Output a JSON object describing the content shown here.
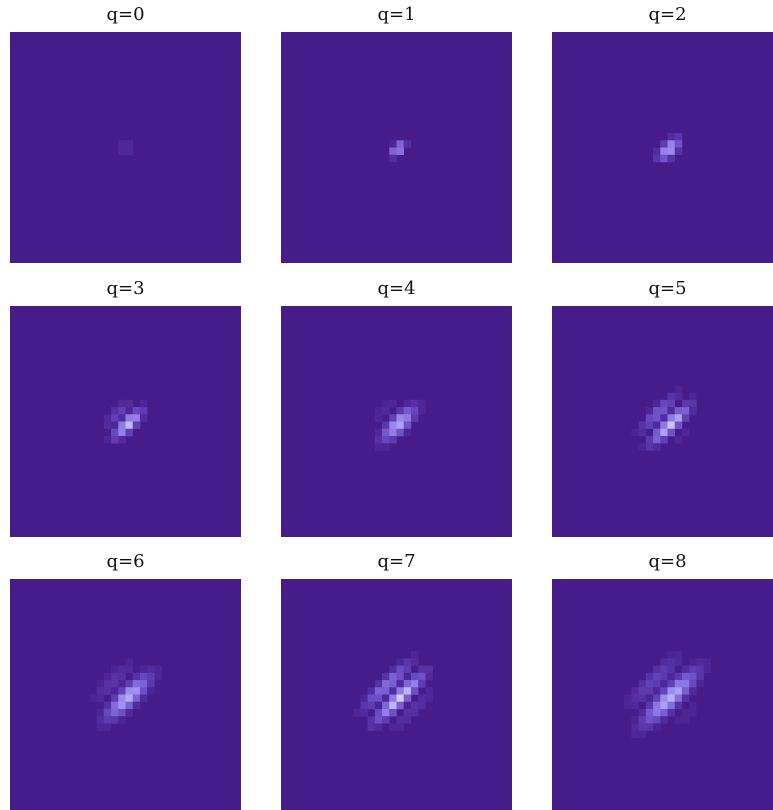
{
  "figure": {
    "panel_titles": [
      "q=0",
      "q=1",
      "q=2",
      "q=3",
      "q=4",
      "q=5",
      "q=6",
      "q=7",
      "q=8"
    ]
  },
  "colors": {
    "background": "#461c8a",
    "dim": "#6a4cc4",
    "mid": "#8f7ae6",
    "light": "#b8b3f4",
    "bright": "#f3eaf2"
  },
  "chart_data": [
    {
      "type": "heatmap",
      "title": "q=0",
      "grid": [
        32,
        32
      ],
      "colormap": "purple-to-cream",
      "value_range": [
        0,
        1
      ],
      "center": [
        16,
        16
      ],
      "sigma_major": 0.3,
      "sigma_minor": 0.3,
      "angle_deg": 45,
      "fringes": 0,
      "max_intensity": 1.0,
      "axes_visible": false
    },
    {
      "type": "heatmap",
      "title": "q=1",
      "grid": [
        32,
        32
      ],
      "colormap": "purple-to-cream",
      "value_range": [
        0,
        1
      ],
      "center": [
        16,
        16
      ],
      "sigma_major": 0.8,
      "sigma_minor": 0.55,
      "angle_deg": 45,
      "fringes": 1,
      "max_intensity": 1.0,
      "axes_visible": false
    },
    {
      "type": "heatmap",
      "title": "q=2",
      "grid": [
        32,
        32
      ],
      "colormap": "purple-to-cream",
      "value_range": [
        0,
        1
      ],
      "center": [
        16,
        16
      ],
      "sigma_major": 1.2,
      "sigma_minor": 0.8,
      "angle_deg": 45,
      "fringes": 2,
      "max_intensity": 0.85,
      "axes_visible": false
    },
    {
      "type": "heatmap",
      "title": "q=3",
      "grid": [
        32,
        32
      ],
      "colormap": "purple-to-cream",
      "value_range": [
        0,
        1
      ],
      "center": [
        16,
        16
      ],
      "sigma_major": 1.6,
      "sigma_minor": 1.0,
      "angle_deg": 45,
      "fringes": 3,
      "max_intensity": 1.0,
      "axes_visible": false
    },
    {
      "type": "heatmap",
      "title": "q=4",
      "grid": [
        32,
        32
      ],
      "colormap": "purple-to-cream",
      "value_range": [
        0,
        1
      ],
      "center": [
        16,
        16
      ],
      "sigma_major": 1.9,
      "sigma_minor": 1.2,
      "angle_deg": 45,
      "fringes": 4,
      "max_intensity": 0.8,
      "axes_visible": false
    },
    {
      "type": "heatmap",
      "title": "q=5",
      "grid": [
        32,
        32
      ],
      "colormap": "purple-to-cream",
      "value_range": [
        0,
        1
      ],
      "center": [
        16,
        16
      ],
      "sigma_major": 2.2,
      "sigma_minor": 1.35,
      "angle_deg": 45,
      "fringes": 5,
      "max_intensity": 0.95,
      "axes_visible": false
    },
    {
      "type": "heatmap",
      "title": "q=6",
      "grid": [
        32,
        32
      ],
      "colormap": "purple-to-cream",
      "value_range": [
        0,
        1
      ],
      "center": [
        16,
        16
      ],
      "sigma_major": 2.5,
      "sigma_minor": 1.5,
      "angle_deg": 45,
      "fringes": 6,
      "max_intensity": 0.8,
      "axes_visible": false
    },
    {
      "type": "heatmap",
      "title": "q=7",
      "grid": [
        32,
        32
      ],
      "colormap": "purple-to-cream",
      "value_range": [
        0,
        1
      ],
      "center": [
        16,
        16
      ],
      "sigma_major": 2.8,
      "sigma_minor": 1.65,
      "angle_deg": 45,
      "fringes": 7,
      "max_intensity": 0.95,
      "axes_visible": false
    },
    {
      "type": "heatmap",
      "title": "q=8",
      "grid": [
        32,
        32
      ],
      "colormap": "purple-to-cream",
      "value_range": [
        0,
        1
      ],
      "center": [
        16,
        16
      ],
      "sigma_major": 3.1,
      "sigma_minor": 1.8,
      "angle_deg": 45,
      "fringes": 8,
      "max_intensity": 0.8,
      "axes_visible": false
    }
  ]
}
